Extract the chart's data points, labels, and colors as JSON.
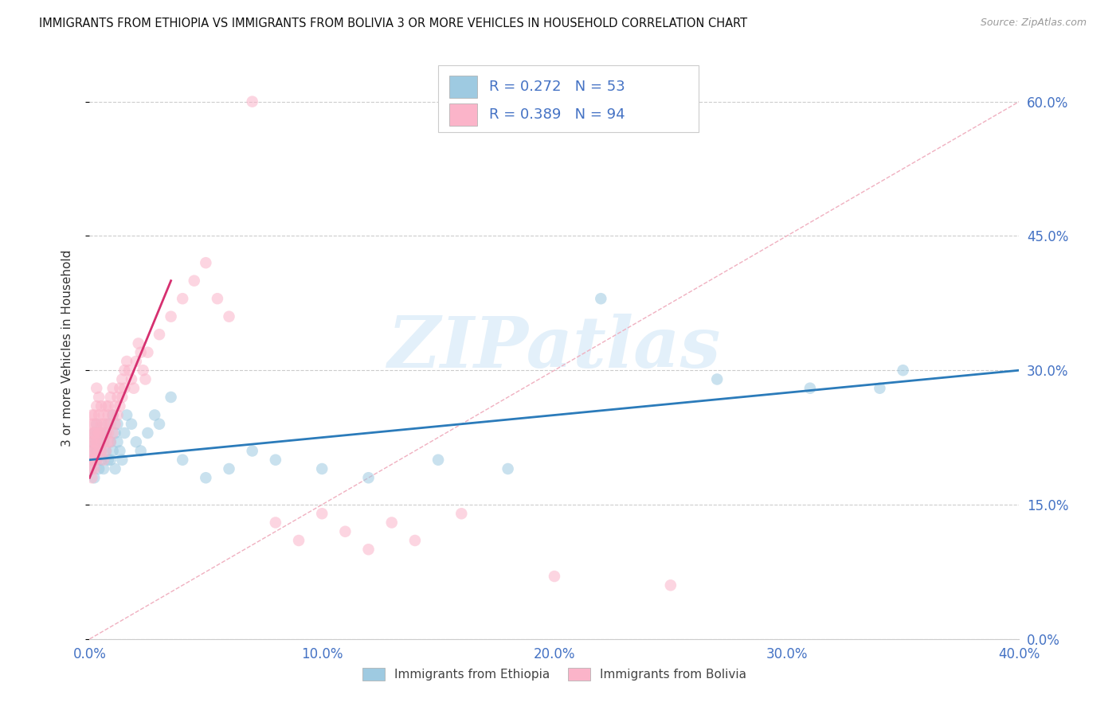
{
  "title": "IMMIGRANTS FROM ETHIOPIA VS IMMIGRANTS FROM BOLIVIA 3 OR MORE VEHICLES IN HOUSEHOLD CORRELATION CHART",
  "source": "Source: ZipAtlas.com",
  "ylabel": "3 or more Vehicles in Household",
  "legend_label_1": "Immigrants from Ethiopia",
  "legend_label_2": "Immigrants from Bolivia",
  "R1": "0.272",
  "N1": "53",
  "R2": "0.389",
  "N2": "94",
  "color_ethiopia": "#9ecae1",
  "color_bolivia": "#fbb4c9",
  "color_trend_ethiopia": "#2b7bba",
  "color_trend_bolivia": "#d63070",
  "color_legend_text": "#333333",
  "color_legend_values": "#4472c4",
  "xmin": 0.0,
  "xmax": 0.4,
  "ymin": 0.0,
  "ymax": 0.65,
  "ytick_vals": [
    0.0,
    0.15,
    0.3,
    0.45,
    0.6
  ],
  "ytick_labels": [
    "0.0%",
    "15.0%",
    "30.0%",
    "45.0%",
    "60.0%"
  ],
  "xtick_vals": [
    0.0,
    0.1,
    0.2,
    0.3,
    0.4
  ],
  "xtick_labels": [
    "0.0%",
    "10.0%",
    "20.0%",
    "30.0%",
    "40.0%"
  ],
  "background_color": "#ffffff",
  "grid_color": "#cccccc",
  "axis_color": "#4472c4",
  "watermark_color": "#d8eaf8",
  "ethiopia_x": [
    0.001,
    0.001,
    0.001,
    0.002,
    0.002,
    0.002,
    0.003,
    0.003,
    0.003,
    0.004,
    0.004,
    0.005,
    0.005,
    0.005,
    0.006,
    0.006,
    0.007,
    0.007,
    0.008,
    0.008,
    0.009,
    0.009,
    0.01,
    0.01,
    0.011,
    0.011,
    0.012,
    0.012,
    0.013,
    0.014,
    0.015,
    0.016,
    0.018,
    0.02,
    0.022,
    0.025,
    0.028,
    0.03,
    0.035,
    0.04,
    0.05,
    0.06,
    0.07,
    0.08,
    0.1,
    0.12,
    0.15,
    0.18,
    0.22,
    0.27,
    0.31,
    0.34,
    0.35
  ],
  "ethiopia_y": [
    0.22,
    0.19,
    0.21,
    0.2,
    0.23,
    0.18,
    0.21,
    0.24,
    0.2,
    0.22,
    0.19,
    0.21,
    0.23,
    0.2,
    0.22,
    0.19,
    0.21,
    0.23,
    0.2,
    0.24,
    0.22,
    0.2,
    0.25,
    0.21,
    0.23,
    0.19,
    0.24,
    0.22,
    0.21,
    0.2,
    0.23,
    0.25,
    0.24,
    0.22,
    0.21,
    0.23,
    0.25,
    0.24,
    0.27,
    0.2,
    0.18,
    0.19,
    0.21,
    0.2,
    0.19,
    0.18,
    0.2,
    0.19,
    0.38,
    0.29,
    0.28,
    0.28,
    0.3
  ],
  "bolivia_x": [
    0.001,
    0.001,
    0.001,
    0.001,
    0.001,
    0.001,
    0.001,
    0.001,
    0.001,
    0.001,
    0.002,
    0.002,
    0.002,
    0.002,
    0.002,
    0.002,
    0.002,
    0.002,
    0.002,
    0.002,
    0.003,
    0.003,
    0.003,
    0.003,
    0.003,
    0.003,
    0.003,
    0.003,
    0.004,
    0.004,
    0.004,
    0.004,
    0.004,
    0.005,
    0.005,
    0.005,
    0.005,
    0.005,
    0.006,
    0.006,
    0.006,
    0.006,
    0.007,
    0.007,
    0.007,
    0.007,
    0.008,
    0.008,
    0.008,
    0.008,
    0.009,
    0.009,
    0.009,
    0.01,
    0.01,
    0.01,
    0.011,
    0.011,
    0.012,
    0.012,
    0.013,
    0.013,
    0.014,
    0.014,
    0.015,
    0.015,
    0.016,
    0.017,
    0.018,
    0.019,
    0.02,
    0.021,
    0.022,
    0.023,
    0.024,
    0.025,
    0.03,
    0.035,
    0.04,
    0.045,
    0.05,
    0.055,
    0.06,
    0.07,
    0.08,
    0.09,
    0.1,
    0.11,
    0.12,
    0.13,
    0.14,
    0.16,
    0.2,
    0.25
  ],
  "bolivia_y": [
    0.22,
    0.2,
    0.24,
    0.19,
    0.21,
    0.23,
    0.2,
    0.22,
    0.25,
    0.18,
    0.21,
    0.23,
    0.2,
    0.22,
    0.24,
    0.21,
    0.19,
    0.23,
    0.25,
    0.2,
    0.22,
    0.24,
    0.21,
    0.23,
    0.26,
    0.2,
    0.22,
    0.28,
    0.23,
    0.25,
    0.21,
    0.23,
    0.27,
    0.22,
    0.24,
    0.26,
    0.21,
    0.23,
    0.24,
    0.22,
    0.25,
    0.2,
    0.23,
    0.26,
    0.21,
    0.24,
    0.25,
    0.23,
    0.22,
    0.26,
    0.24,
    0.27,
    0.22,
    0.25,
    0.23,
    0.28,
    0.26,
    0.24,
    0.27,
    0.25,
    0.28,
    0.26,
    0.29,
    0.27,
    0.3,
    0.28,
    0.31,
    0.3,
    0.29,
    0.28,
    0.31,
    0.33,
    0.32,
    0.3,
    0.29,
    0.32,
    0.34,
    0.36,
    0.38,
    0.4,
    0.42,
    0.38,
    0.36,
    0.6,
    0.13,
    0.11,
    0.14,
    0.12,
    0.1,
    0.13,
    0.11,
    0.14,
    0.07,
    0.06
  ]
}
